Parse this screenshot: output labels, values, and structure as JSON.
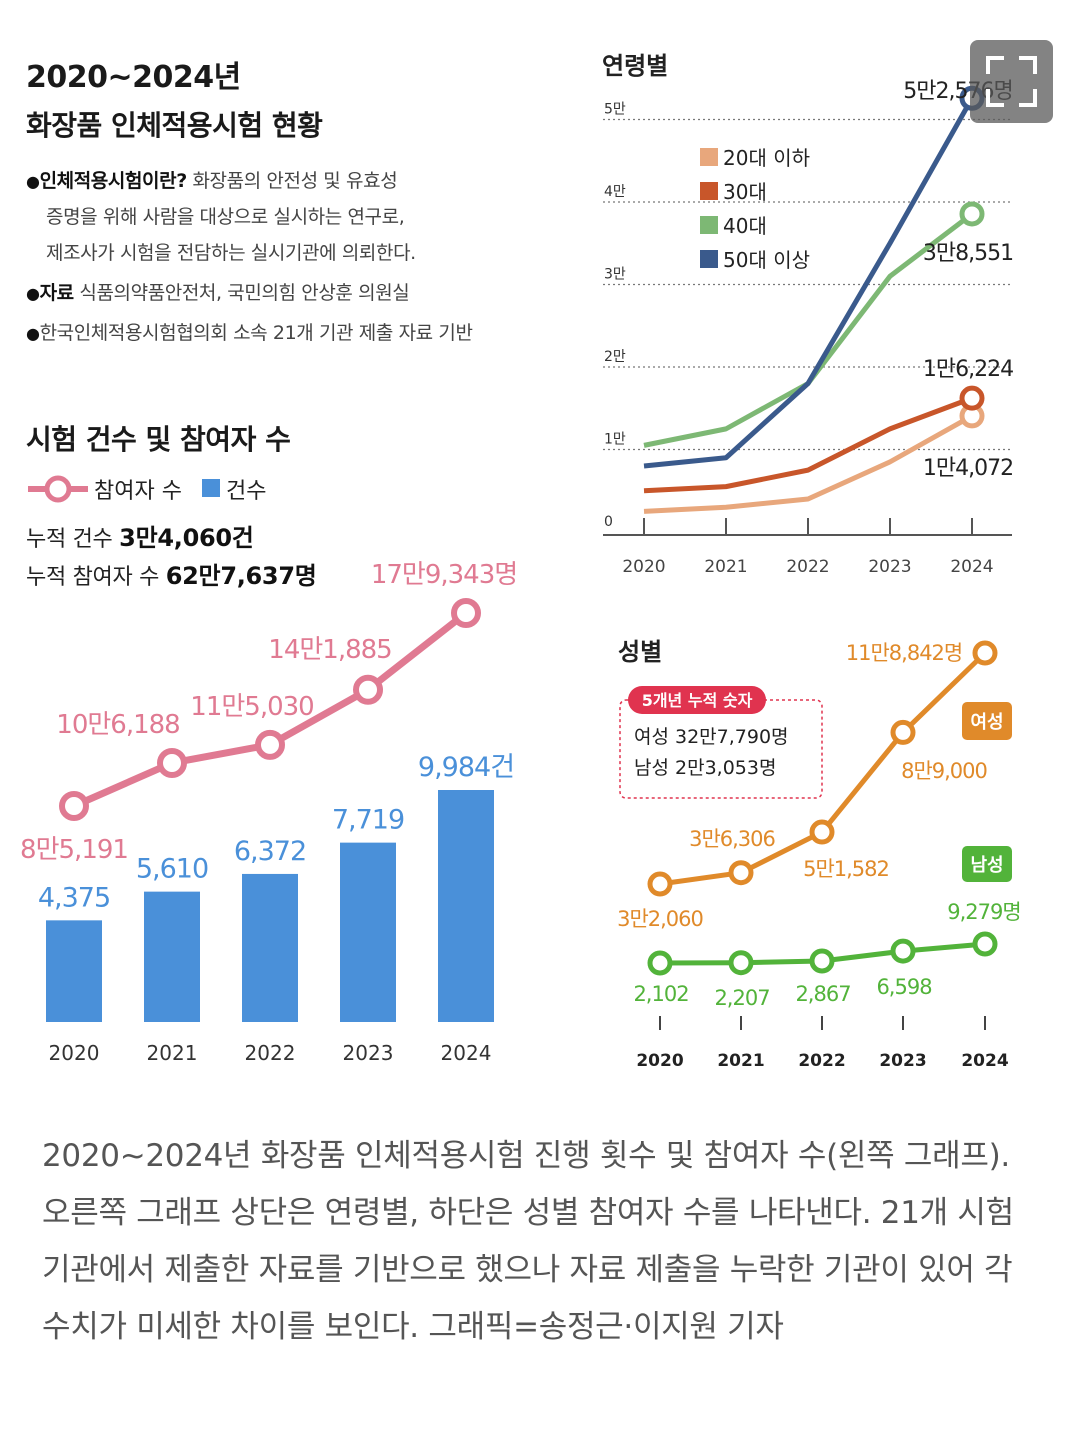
{
  "header": {
    "title_line1": "2020~2024년",
    "title_line2": "화장품 인체적용시험 현황",
    "definition_label": "인체적용시험이란?",
    "definition_text_1": "화장품의 안전성 및 유효성",
    "definition_text_2": "증명을 위해 사람을 대상으로 실시하는 연구로,",
    "definition_text_3": "제조사가 시험을 전담하는 실시기관에 의뢰한다.",
    "source_label": "자료",
    "source_text": "식품의약품안전처, 국민의힘 안상훈 의원실",
    "basis_text": "한국인체적용시험협의회 소속 21개 기관 제출 자료 기반"
  },
  "left_section": {
    "title": "시험 건수 및 참여자 수",
    "legend_participants": "참여자 수",
    "legend_cases": "건수",
    "cum_cases_label": "누적 건수",
    "cum_cases_value": "3만4,060건",
    "cum_participants_label": "누적 참여자 수",
    "cum_participants_value": "62만7,637명"
  },
  "caption": "2020~2024년 화장품 인체적용시험 진행 횟수 및 참여자 수(왼쪽 그래프). 오른쪽 그래프 상단은 연령별, 하단은 성별 참여자 수를 나타낸다. 21개 시험기관에서 제출한 자료를 기반으로 했으나 자료 제출을 누락한 기관이 있어 각 수치가 미세한 차이를 보인다. 그래픽=송정근·이지원 기자",
  "colors": {
    "pink": "#e07a92",
    "blue": "#4a90d9",
    "age_20": "#e8a77c",
    "age_30": "#c8562a",
    "age_40": "#7db874",
    "age_50": "#3a5a8c",
    "female": "#e08a2a",
    "male": "#52b33a",
    "callout_red": "#e0334f"
  },
  "chart_data": [
    {
      "type": "bar",
      "title": "시험 건수 및 참여자 수",
      "categories": [
        "2020",
        "2021",
        "2022",
        "2023",
        "2024"
      ],
      "series": [
        {
          "name": "건수",
          "values": [
            4375,
            5610,
            6372,
            7719,
            9984
          ],
          "labels": [
            "4,375",
            "5,610",
            "6,372",
            "7,719",
            "9,984건"
          ]
        },
        {
          "name": "참여자 수",
          "type": "line",
          "values": [
            85191,
            106188,
            115030,
            141885,
            179343
          ],
          "labels": [
            "8만5,191",
            "10만6,188",
            "11만5,030",
            "14만1,885",
            "17만9,343명"
          ]
        }
      ]
    },
    {
      "type": "line",
      "title": "연령별",
      "categories": [
        "2020",
        "2021",
        "2022",
        "2023",
        "2024"
      ],
      "yticks": [
        "0",
        "1만",
        "2만",
        "3만",
        "4만",
        "5만"
      ],
      "ylim": [
        0,
        50000
      ],
      "series": [
        {
          "name": "20대 이하",
          "values": [
            2500,
            3000,
            4000,
            8500,
            14072
          ]
        },
        {
          "name": "30대",
          "values": [
            5000,
            5500,
            7500,
            12500,
            16224
          ]
        },
        {
          "name": "40대",
          "values": [
            10500,
            12500,
            18000,
            31000,
            38551
          ]
        },
        {
          "name": "50대 이상",
          "values": [
            8000,
            9000,
            18000,
            35000,
            52576
          ]
        }
      ],
      "end_labels": {
        "20대 이하": "1만4,072",
        "30대": "1만6,224",
        "40대": "3만8,551",
        "50대 이상": "5만2,576명"
      }
    },
    {
      "type": "line",
      "title": "성별",
      "categories": [
        "2020",
        "2021",
        "2022",
        "2023",
        "2024"
      ],
      "callout_title": "5개년 누적 숫자",
      "callout_female": "여성 32만7,790명",
      "callout_male": "남성 2만3,053명",
      "series": [
        {
          "name": "여성",
          "values": [
            32060,
            36306,
            51582,
            89000,
            118842
          ],
          "labels": [
            "3만2,060",
            "3만6,306",
            "5만1,582",
            "8만9,000",
            "11만8,842명"
          ]
        },
        {
          "name": "남성",
          "values": [
            2102,
            2207,
            2867,
            6598,
            9279
          ],
          "labels": [
            "2,102",
            "2,207",
            "2,867",
            "6,598",
            "9,279명"
          ]
        }
      ]
    }
  ]
}
